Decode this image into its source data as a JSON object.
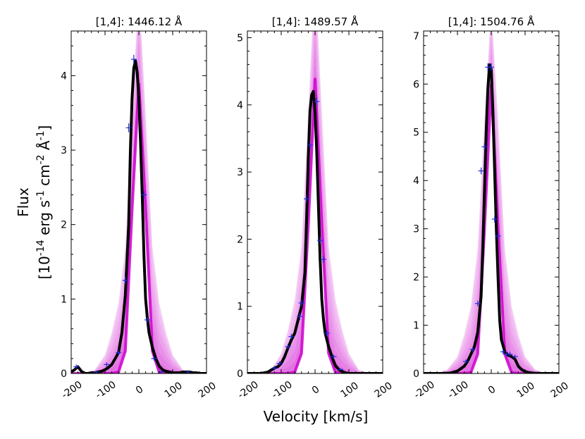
{
  "figure": {
    "ylabel_line1": "Flux",
    "ylabel_line2_parts": [
      "[10",
      "-14",
      " erg s",
      "-1",
      " cm",
      "-2",
      " Å",
      "-1",
      "]"
    ],
    "xlabel": "Velocity [km/s]"
  },
  "colors": {
    "model_envelope": "#cc00cc",
    "observed": "#000000",
    "errorbar": "#1f2fd6"
  },
  "chart_data": [
    {
      "type": "line",
      "title": "[1,4]: 1446.12 Å",
      "xlim": [
        -200,
        200
      ],
      "ylim": [
        0,
        4.6
      ],
      "xticks": [
        -200,
        -100,
        0,
        100,
        200
      ],
      "xtick_labels": [
        "-200",
        "-100",
        "0",
        "100",
        "200"
      ],
      "yticks": [
        0,
        1,
        2,
        3,
        4
      ],
      "ytick_labels": [
        "0",
        "1",
        "2",
        "3",
        "4"
      ],
      "observed": {
        "x": [
          -200,
          -190,
          -180,
          -170,
          -160,
          -150,
          -140,
          -130,
          -120,
          -110,
          -100,
          -90,
          -80,
          -70,
          -60,
          -50,
          -40,
          -30,
          -25,
          -20,
          -15,
          -10,
          -5,
          0,
          5,
          10,
          15,
          20,
          25,
          30,
          40,
          50,
          60,
          70,
          80,
          90,
          100,
          110,
          120,
          130,
          140,
          150,
          160,
          170,
          180,
          190,
          200
        ],
        "y": [
          0.02,
          0.05,
          0.09,
          0.03,
          0.0,
          0.0,
          0.01,
          0.01,
          0.02,
          0.03,
          0.05,
          0.08,
          0.12,
          0.2,
          0.28,
          0.55,
          1.05,
          2.0,
          3.0,
          3.7,
          4.1,
          4.2,
          4.05,
          3.7,
          3.1,
          2.4,
          1.6,
          1.0,
          0.75,
          0.55,
          0.35,
          0.2,
          0.1,
          0.05,
          0.03,
          0.02,
          0.01,
          0.01,
          0.01,
          0.02,
          0.02,
          0.02,
          0.01,
          0.01,
          0.0,
          0.0,
          0.0
        ]
      },
      "errorbars": {
        "x": [
          -185,
          -125,
          -95,
          -60,
          -40,
          -30,
          -15,
          15,
          25,
          45,
          65,
          145
        ],
        "y": [
          0.09,
          0.02,
          0.12,
          0.28,
          1.25,
          3.3,
          4.22,
          2.4,
          0.72,
          0.2,
          0.02,
          0.02
        ],
        "err": [
          0.03,
          0.02,
          0.03,
          0.04,
          0.05,
          0.06,
          0.06,
          0.05,
          0.04,
          0.03,
          0.02,
          0.02
        ]
      },
      "model_envelope": {
        "x": [
          -200,
          -160,
          -130,
          -100,
          -80,
          -60,
          -40,
          -20,
          0,
          20,
          40,
          60,
          80,
          100,
          130,
          160,
          200
        ],
        "lower": [
          0,
          0,
          0,
          0,
          0,
          0.02,
          0.3,
          2.2,
          3.9,
          2.2,
          0.3,
          0.02,
          0,
          0,
          0,
          0,
          0
        ],
        "upper": [
          0,
          0.01,
          0.05,
          0.25,
          0.55,
          0.95,
          1.7,
          3.5,
          5.2,
          3.5,
          1.7,
          0.95,
          0.55,
          0.25,
          0.05,
          0.01,
          0
        ]
      }
    },
    {
      "type": "line",
      "title": "[1,4]: 1489.57 Å",
      "xlim": [
        -200,
        200
      ],
      "ylim": [
        0,
        5.1
      ],
      "xticks": [
        -200,
        -100,
        0,
        100,
        200
      ],
      "xtick_labels": [
        "-200",
        "-100",
        "0",
        "100",
        "200"
      ],
      "yticks": [
        0,
        1,
        2,
        3,
        4,
        5
      ],
      "ytick_labels": [
        "0",
        "1",
        "2",
        "3",
        "4",
        "5"
      ],
      "observed": {
        "x": [
          -200,
          -180,
          -160,
          -140,
          -130,
          -120,
          -110,
          -100,
          -90,
          -80,
          -70,
          -60,
          -50,
          -40,
          -30,
          -25,
          -20,
          -15,
          -10,
          -5,
          0,
          5,
          10,
          15,
          20,
          25,
          30,
          40,
          50,
          60,
          70,
          80,
          90,
          100,
          120,
          140,
          160,
          180,
          200
        ],
        "y": [
          0.0,
          0.0,
          0.0,
          0.02,
          0.05,
          0.08,
          0.1,
          0.15,
          0.25,
          0.38,
          0.5,
          0.6,
          0.8,
          1.0,
          1.5,
          2.3,
          3.2,
          3.9,
          4.15,
          4.2,
          3.9,
          3.3,
          2.5,
          1.7,
          1.1,
          0.8,
          0.6,
          0.4,
          0.25,
          0.12,
          0.06,
          0.03,
          0.01,
          0.0,
          0.0,
          0.0,
          0.0,
          0.0,
          0.0
        ]
      },
      "errorbars": {
        "x": [
          -120,
          -105,
          -80,
          -70,
          -45,
          -40,
          -25,
          -15,
          5,
          15,
          25,
          35,
          55,
          75
        ],
        "y": [
          0.08,
          0.15,
          0.4,
          0.55,
          0.85,
          1.05,
          2.6,
          3.4,
          4.05,
          1.98,
          1.7,
          0.6,
          0.25,
          0.06
        ],
        "err": [
          0.03,
          0.03,
          0.04,
          0.04,
          0.05,
          0.05,
          0.06,
          0.06,
          0.06,
          0.05,
          0.05,
          0.04,
          0.03,
          0.02
        ]
      },
      "model_envelope": {
        "x": [
          -200,
          -160,
          -130,
          -100,
          -80,
          -60,
          -40,
          -20,
          0,
          20,
          40,
          60,
          80,
          100,
          130,
          160,
          200
        ],
        "lower": [
          0,
          0,
          0,
          0,
          0,
          0.02,
          0.3,
          2.2,
          4.4,
          2.2,
          0.3,
          0.02,
          0,
          0,
          0,
          0,
          0
        ],
        "upper": [
          0,
          0.01,
          0.05,
          0.3,
          0.65,
          1.1,
          1.9,
          3.9,
          6.0,
          3.9,
          1.9,
          1.1,
          0.65,
          0.3,
          0.05,
          0.01,
          0
        ]
      }
    },
    {
      "type": "line",
      "title": "[1,4]: 1504.76 Å",
      "xlim": [
        -200,
        200
      ],
      "ylim": [
        0,
        7.1
      ],
      "xticks": [
        -200,
        -100,
        0,
        100,
        200
      ],
      "xtick_labels": [
        "-200",
        "-100",
        "0",
        "100",
        "200"
      ],
      "yticks": [
        0,
        1,
        2,
        3,
        4,
        5,
        6,
        7
      ],
      "ytick_labels": [
        "0",
        "1",
        "2",
        "3",
        "4",
        "5",
        "6",
        "7"
      ],
      "observed": {
        "x": [
          -200,
          -170,
          -140,
          -120,
          -110,
          -100,
          -90,
          -80,
          -70,
          -60,
          -50,
          -40,
          -30,
          -25,
          -20,
          -15,
          -10,
          -5,
          0,
          5,
          10,
          15,
          20,
          25,
          30,
          40,
          50,
          60,
          70,
          80,
          90,
          100,
          110,
          120,
          140,
          160,
          180,
          200
        ],
        "y": [
          0.0,
          0.0,
          0.0,
          0.01,
          0.03,
          0.05,
          0.1,
          0.15,
          0.25,
          0.4,
          0.55,
          0.85,
          1.6,
          2.6,
          3.8,
          5.0,
          5.9,
          6.4,
          6.3,
          5.4,
          4.2,
          3.0,
          2.0,
          1.1,
          0.7,
          0.45,
          0.38,
          0.35,
          0.3,
          0.15,
          0.08,
          0.04,
          0.02,
          0.01,
          0.0,
          0.0,
          0.0,
          0.0
        ]
      },
      "errorbars": {
        "x": [
          -75,
          -55,
          -40,
          -30,
          -20,
          -10,
          0,
          10,
          20,
          35,
          45,
          55,
          70
        ],
        "y": [
          0.25,
          0.5,
          1.45,
          4.2,
          4.7,
          6.35,
          6.35,
          3.2,
          2.85,
          0.45,
          0.4,
          0.4,
          0.35
        ],
        "err": [
          0.04,
          0.05,
          0.06,
          0.07,
          0.07,
          0.08,
          0.08,
          0.07,
          0.07,
          0.05,
          0.05,
          0.05,
          0.04
        ]
      },
      "model_envelope": {
        "x": [
          -200,
          -160,
          -130,
          -100,
          -80,
          -60,
          -40,
          -20,
          0,
          20,
          40,
          60,
          80,
          100,
          130,
          160,
          200
        ],
        "lower": [
          0,
          0,
          0,
          0,
          0,
          0.02,
          0.4,
          3.0,
          6.0,
          3.0,
          0.4,
          0.02,
          0,
          0,
          0,
          0,
          0
        ],
        "upper": [
          0,
          0.01,
          0.08,
          0.35,
          0.8,
          1.4,
          2.6,
          5.3,
          7.6,
          5.3,
          2.6,
          1.4,
          0.8,
          0.35,
          0.08,
          0.01,
          0
        ]
      }
    }
  ]
}
